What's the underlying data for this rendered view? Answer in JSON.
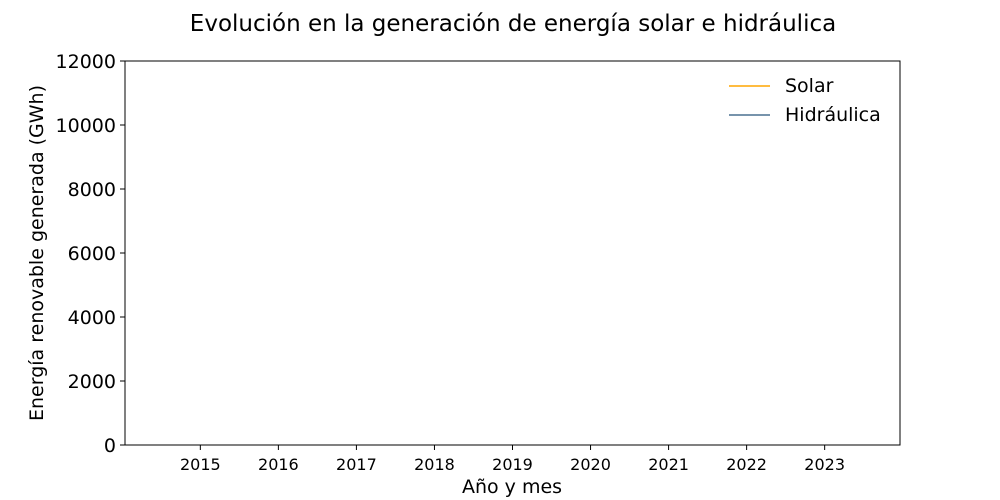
{
  "chart_data": {
    "type": "line",
    "title": "Evolución en la generación de energía solar e hidráulica",
    "xlabel": "Año y mes",
    "ylabel": "Energía renovable generada (GWh)",
    "x_ticks": [
      "2015",
      "2016",
      "2017",
      "2018",
      "2019",
      "2020",
      "2021",
      "2022",
      "2023"
    ],
    "xlim": [
      2014.0347,
      2023.9653
    ],
    "ylim": [
      0,
      12000
    ],
    "y_ticks": [
      "0",
      "2000",
      "4000",
      "6000",
      "8000",
      "10000",
      "12000"
    ],
    "grid": false,
    "legend_position": "top-right",
    "series": [
      {
        "name": "Solar",
        "color": "#ffa500",
        "points": []
      },
      {
        "name": "Hidráulica",
        "color": "#4a7090",
        "points": []
      }
    ]
  }
}
